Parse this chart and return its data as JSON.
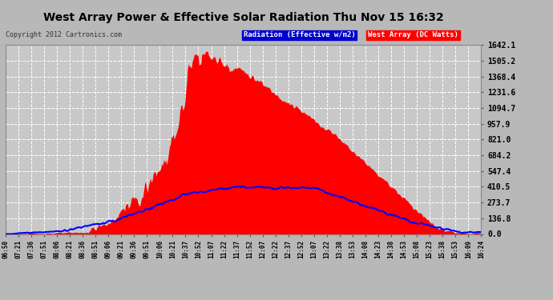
{
  "title": "West Array Power & Effective Solar Radiation Thu Nov 15 16:32",
  "copyright": "Copyright 2012 Cartronics.com",
  "legend_radiation": "Radiation (Effective w/m2)",
  "legend_west": "West Array (DC Watts)",
  "yticks": [
    0.0,
    136.8,
    273.7,
    410.5,
    547.4,
    684.2,
    821.0,
    957.9,
    1094.7,
    1231.6,
    1368.4,
    1505.2,
    1642.1
  ],
  "ymax": 1642.1,
  "bg_color": "#b8b8b8",
  "plot_bg_color": "#c8c8c8",
  "grid_color": "#ffffff",
  "red_color": "#ff0000",
  "blue_color": "#0000ff",
  "title_color": "#000000",
  "xtick_labels": [
    "06:50",
    "07:21",
    "07:36",
    "07:51",
    "08:06",
    "08:21",
    "08:36",
    "08:51",
    "09:06",
    "09:21",
    "09:36",
    "09:51",
    "10:06",
    "10:21",
    "10:37",
    "10:52",
    "11:07",
    "11:22",
    "11:37",
    "11:52",
    "12:07",
    "12:22",
    "12:37",
    "12:52",
    "13:07",
    "13:22",
    "13:38",
    "13:53",
    "14:08",
    "14:23",
    "14:38",
    "14:53",
    "15:08",
    "15:23",
    "15:38",
    "15:53",
    "16:09",
    "16:24"
  ]
}
